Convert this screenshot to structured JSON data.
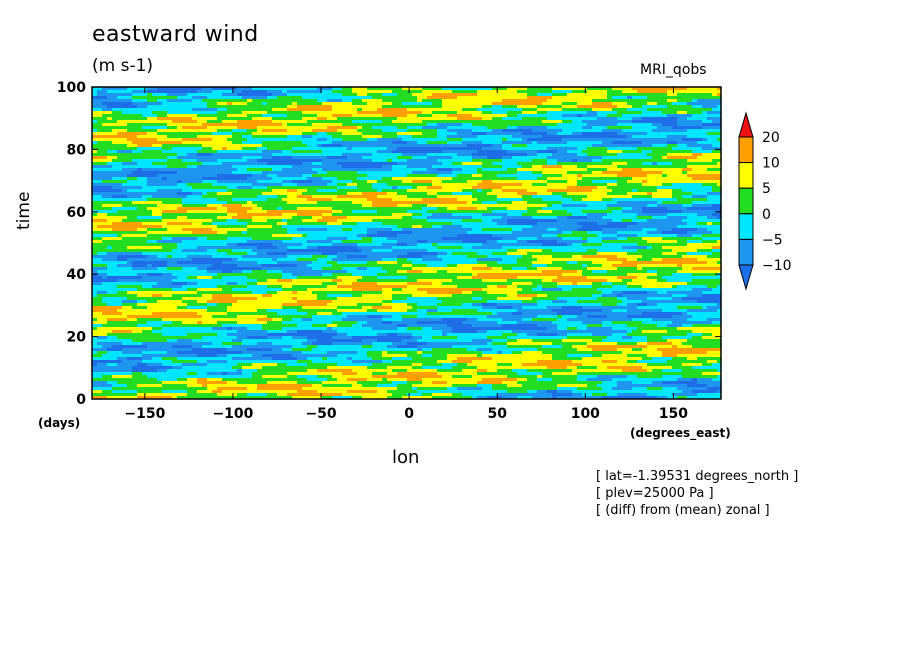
{
  "header": {
    "title": "eastward wind",
    "units": "(m s-1)",
    "model": "MRI_qobs"
  },
  "axes": {
    "ylabel": "time",
    "yunit": "(days)",
    "xlabel": "lon",
    "xunit": "(degrees_east)"
  },
  "notes": [
    "[ lat=-1.39531 degrees_north ]",
    "[ plev=25000 Pa ]",
    "[ (diff) from (mean) zonal ]"
  ],
  "chart_data": {
    "type": "heatmap",
    "title": "eastward wind",
    "xlabel": "lon",
    "ylabel": "time",
    "xlim": [
      -180,
      177
    ],
    "ylim": [
      0,
      100
    ],
    "x_ticks": [
      -150,
      -100,
      -50,
      0,
      50,
      100,
      150
    ],
    "x_tick_labels": [
      "-150",
      "-100",
      "-50",
      "0",
      "50",
      "100",
      "150"
    ],
    "y_ticks": [
      0,
      20,
      40,
      60,
      80,
      100
    ],
    "y_tick_labels": [
      "0",
      "20",
      "40",
      "60",
      "80",
      "100"
    ],
    "colorbar": {
      "levels": [
        -10,
        -5,
        0,
        5,
        10,
        20
      ],
      "labels": [
        "-10",
        "-5",
        "0",
        "5",
        "10",
        "20"
      ],
      "colors": [
        "#1e6ee8",
        "#1e96f0",
        "#00e6ff",
        "#22dd22",
        "#ffff00",
        "#ffa000",
        "#ee1111"
      ],
      "extend": "both"
    }
  }
}
